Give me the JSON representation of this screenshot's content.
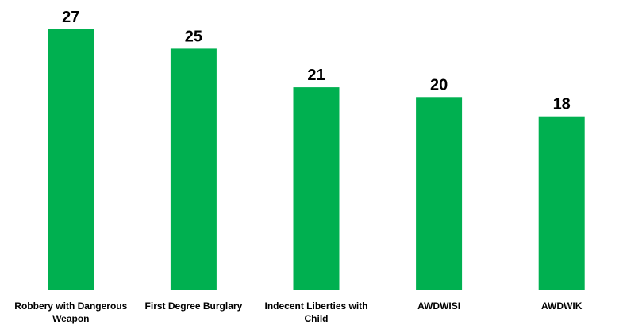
{
  "chart_data": {
    "type": "bar",
    "title": "",
    "xlabel": "",
    "ylabel": "",
    "categories": [
      "Robbery with Dangerous Weapon",
      "First Degree Burglary",
      "Indecent Liberties with Child",
      "AWDWISI",
      "AWDWIK"
    ],
    "values": [
      27,
      25,
      21,
      20,
      18
    ],
    "ylim": [
      0,
      27
    ],
    "grid": false,
    "legend": "none",
    "bar_color": "#00b050",
    "data_labels": true
  }
}
